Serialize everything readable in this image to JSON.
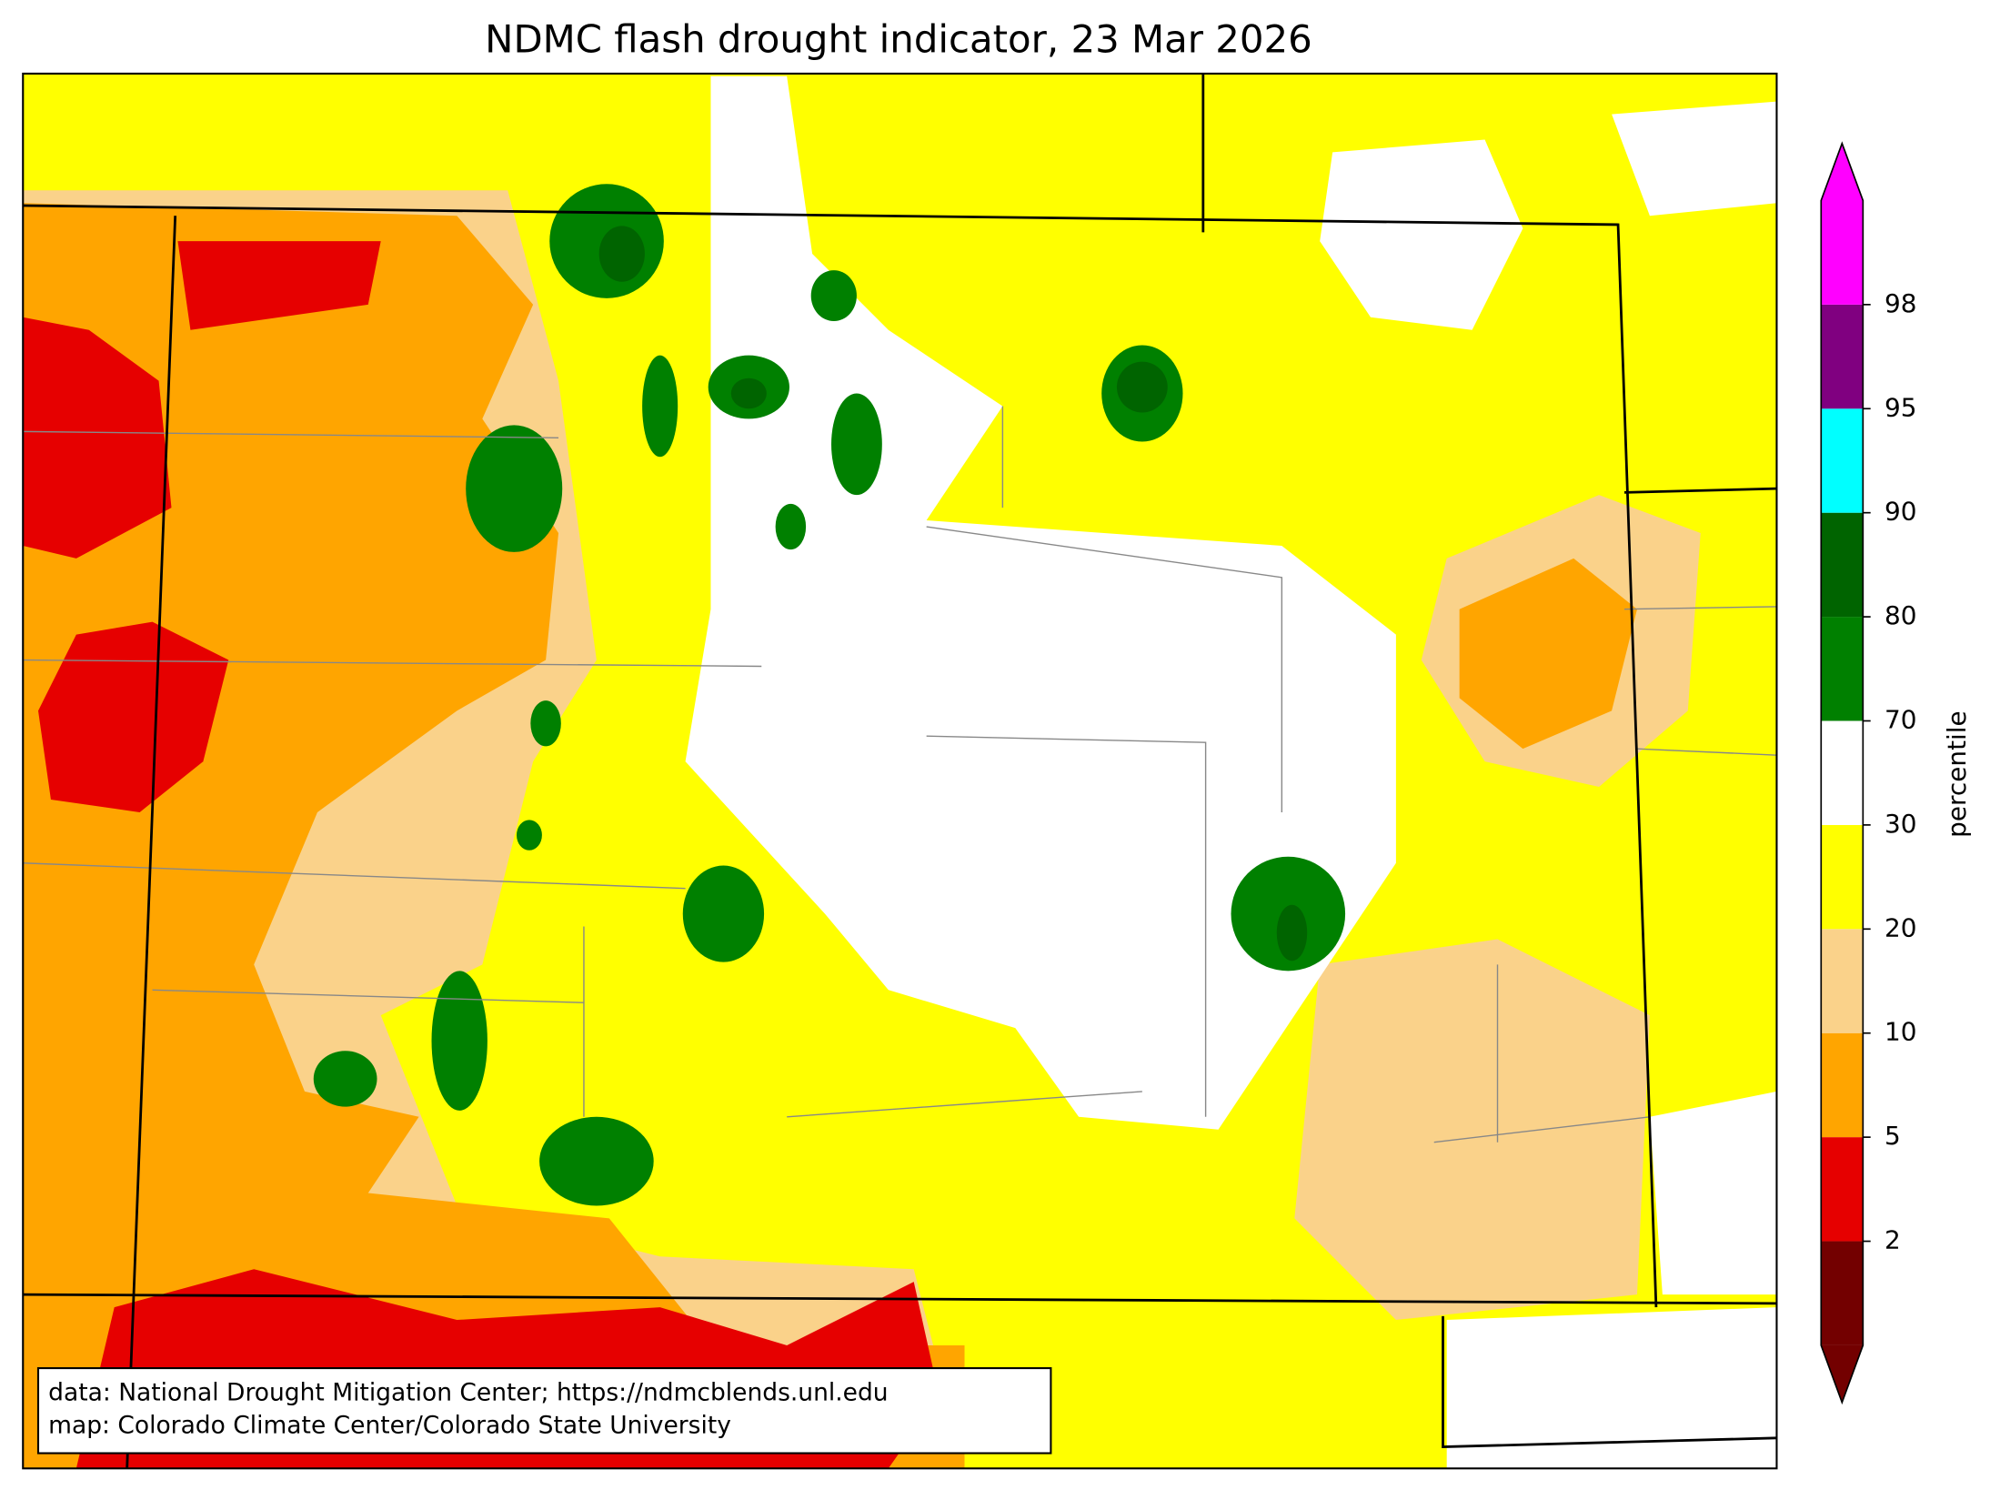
{
  "title": "NDMC flash drought indicator, 23 Mar 2026",
  "credits": [
    "data: National Drought Mitigation Center; https://ndmcblends.unl.edu",
    "map: Colorado Climate Center/Colorado State University"
  ],
  "colorbar": {
    "label": "percentile",
    "ticks": [
      2,
      5,
      10,
      20,
      30,
      70,
      80,
      90,
      95,
      98
    ],
    "colors": [
      "#730000",
      "#e60000",
      "#ffa500",
      "#fad28a",
      "#ffff00",
      "#ffffff",
      "#008000",
      "#006400",
      "#00ffff",
      "#800080",
      "#ff00ff"
    ]
  }
}
